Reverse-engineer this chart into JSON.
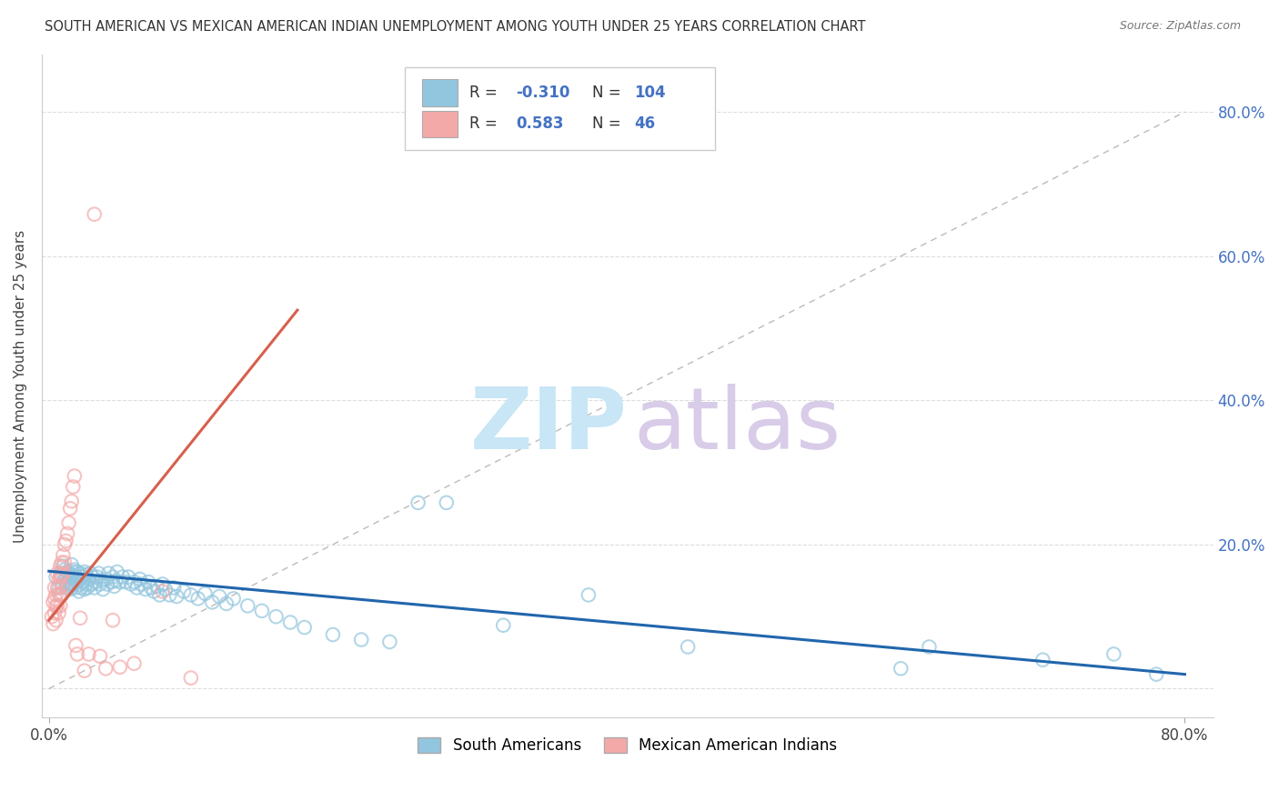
{
  "title": "SOUTH AMERICAN VS MEXICAN AMERICAN INDIAN UNEMPLOYMENT AMONG YOUTH UNDER 25 YEARS CORRELATION CHART",
  "source": "Source: ZipAtlas.com",
  "ylabel": "Unemployment Among Youth under 25 years",
  "xlim": [
    -0.005,
    0.82
  ],
  "ylim": [
    -0.04,
    0.88
  ],
  "blue_R": -0.31,
  "blue_N": 104,
  "pink_R": 0.583,
  "pink_N": 46,
  "blue_color": "#92c5de",
  "pink_color": "#f4a9a9",
  "blue_line_color": "#2166ac",
  "pink_line_color": "#d6604d",
  "watermark_zip": "ZIP",
  "watermark_atlas": "atlas",
  "legend_label_blue": "South Americans",
  "legend_label_pink": "Mexican American Indians",
  "blue_line_x0": 0.0,
  "blue_line_y0": 0.163,
  "blue_line_x1": 0.8,
  "blue_line_y1": 0.02,
  "pink_line_x0": 0.0,
  "pink_line_y0": 0.095,
  "pink_line_x1": 0.175,
  "pink_line_y1": 0.525,
  "blue_scatter_x": [
    0.005,
    0.007,
    0.008,
    0.009,
    0.01,
    0.01,
    0.011,
    0.011,
    0.012,
    0.012,
    0.013,
    0.013,
    0.014,
    0.014,
    0.015,
    0.015,
    0.016,
    0.016,
    0.016,
    0.017,
    0.017,
    0.018,
    0.018,
    0.019,
    0.019,
    0.02,
    0.02,
    0.021,
    0.021,
    0.022,
    0.022,
    0.023,
    0.023,
    0.024,
    0.025,
    0.025,
    0.026,
    0.026,
    0.027,
    0.028,
    0.029,
    0.03,
    0.031,
    0.032,
    0.033,
    0.034,
    0.035,
    0.036,
    0.037,
    0.038,
    0.04,
    0.041,
    0.042,
    0.044,
    0.045,
    0.046,
    0.047,
    0.048,
    0.05,
    0.052,
    0.054,
    0.056,
    0.058,
    0.06,
    0.062,
    0.064,
    0.065,
    0.068,
    0.07,
    0.072,
    0.074,
    0.076,
    0.078,
    0.08,
    0.082,
    0.085,
    0.088,
    0.09,
    0.095,
    0.1,
    0.105,
    0.11,
    0.115,
    0.12,
    0.125,
    0.13,
    0.14,
    0.15,
    0.16,
    0.17,
    0.18,
    0.2,
    0.22,
    0.24,
    0.26,
    0.28,
    0.32,
    0.38,
    0.45,
    0.6,
    0.62,
    0.7,
    0.75,
    0.78
  ],
  "blue_scatter_y": [
    0.155,
    0.14,
    0.16,
    0.13,
    0.145,
    0.17,
    0.15,
    0.165,
    0.14,
    0.155,
    0.145,
    0.162,
    0.148,
    0.16,
    0.138,
    0.155,
    0.142,
    0.158,
    0.172,
    0.145,
    0.162,
    0.15,
    0.165,
    0.14,
    0.155,
    0.148,
    0.162,
    0.135,
    0.152,
    0.145,
    0.16,
    0.14,
    0.155,
    0.148,
    0.138,
    0.162,
    0.145,
    0.158,
    0.14,
    0.152,
    0.16,
    0.145,
    0.155,
    0.14,
    0.148,
    0.155,
    0.16,
    0.145,
    0.15,
    0.138,
    0.152,
    0.145,
    0.16,
    0.148,
    0.155,
    0.142,
    0.15,
    0.162,
    0.148,
    0.155,
    0.148,
    0.155,
    0.145,
    0.148,
    0.14,
    0.152,
    0.145,
    0.138,
    0.148,
    0.14,
    0.135,
    0.142,
    0.13,
    0.145,
    0.138,
    0.13,
    0.14,
    0.128,
    0.135,
    0.13,
    0.125,
    0.132,
    0.12,
    0.128,
    0.118,
    0.125,
    0.115,
    0.108,
    0.1,
    0.092,
    0.085,
    0.075,
    0.068,
    0.065,
    0.258,
    0.258,
    0.088,
    0.13,
    0.058,
    0.028,
    0.058,
    0.04,
    0.048,
    0.02
  ],
  "pink_scatter_x": [
    0.002,
    0.003,
    0.003,
    0.004,
    0.004,
    0.004,
    0.005,
    0.005,
    0.005,
    0.006,
    0.006,
    0.006,
    0.007,
    0.007,
    0.007,
    0.008,
    0.008,
    0.008,
    0.008,
    0.009,
    0.009,
    0.009,
    0.01,
    0.01,
    0.011,
    0.011,
    0.012,
    0.013,
    0.014,
    0.015,
    0.016,
    0.017,
    0.018,
    0.019,
    0.02,
    0.022,
    0.025,
    0.028,
    0.032,
    0.036,
    0.04,
    0.045,
    0.05,
    0.06,
    0.08,
    0.1
  ],
  "pink_scatter_y": [
    0.1,
    0.12,
    0.09,
    0.125,
    0.105,
    0.14,
    0.115,
    0.13,
    0.095,
    0.14,
    0.115,
    0.16,
    0.13,
    0.15,
    0.105,
    0.155,
    0.13,
    0.115,
    0.17,
    0.142,
    0.158,
    0.175,
    0.16,
    0.185,
    0.175,
    0.2,
    0.205,
    0.215,
    0.23,
    0.25,
    0.26,
    0.28,
    0.295,
    0.06,
    0.048,
    0.098,
    0.025,
    0.048,
    0.658,
    0.045,
    0.028,
    0.095,
    0.03,
    0.035,
    0.135,
    0.015
  ]
}
